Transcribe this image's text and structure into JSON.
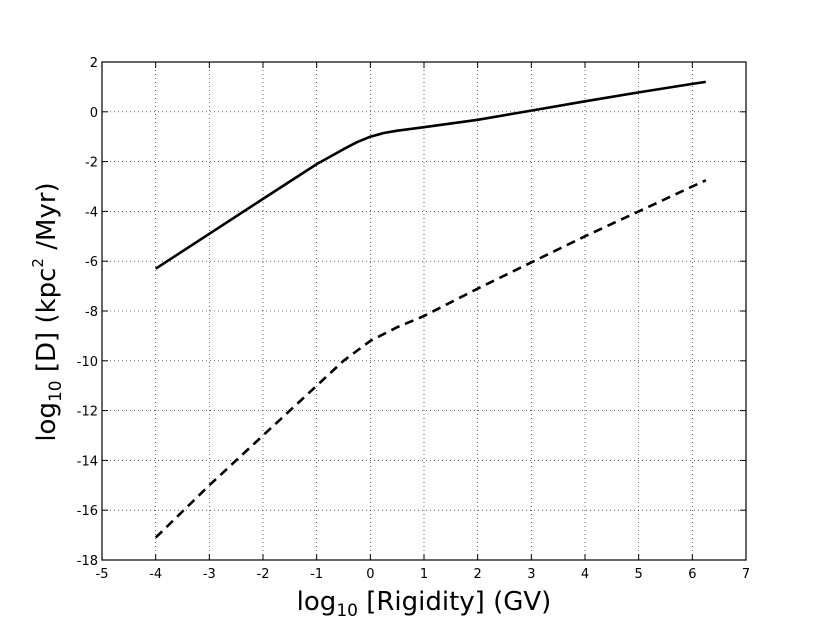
{
  "chart_data": {
    "type": "line",
    "xlabel": {
      "prefix": "log",
      "sub": "10",
      "rest": " [Rigidity] (GV)"
    },
    "ylabel": {
      "prefix": "log",
      "sub": "10",
      "mid": " [D] (kpc",
      "sup": "2",
      "rest": " /Myr)"
    },
    "xlim": [
      -5,
      7
    ],
    "ylim": [
      -18,
      2
    ],
    "xticks": [
      -5,
      -4,
      -3,
      -2,
      -1,
      0,
      1,
      2,
      3,
      4,
      5,
      6,
      7
    ],
    "yticks": [
      -18,
      -16,
      -14,
      -12,
      -10,
      -8,
      -6,
      -4,
      -2,
      0,
      2
    ],
    "grid": true,
    "series": [
      {
        "style": "solid",
        "color": "#000000",
        "points": [
          [
            -4,
            -6.3
          ],
          [
            -3,
            -4.9
          ],
          [
            -2,
            -3.5
          ],
          [
            -1,
            -2.1
          ],
          [
            -0.5,
            -1.5
          ],
          [
            -0.25,
            -1.22
          ],
          [
            0,
            -1.0
          ],
          [
            0.25,
            -0.85
          ],
          [
            0.5,
            -0.76
          ],
          [
            1,
            -0.62
          ],
          [
            2,
            -0.32
          ],
          [
            3,
            0.05
          ],
          [
            4,
            0.42
          ],
          [
            5,
            0.78
          ],
          [
            6,
            1.12
          ],
          [
            6.25,
            1.2
          ]
        ]
      },
      {
        "style": "dashed",
        "color": "#000000",
        "points": [
          [
            -4,
            -17.1
          ],
          [
            -3,
            -15.0
          ],
          [
            -2,
            -13.0
          ],
          [
            -1,
            -11.0
          ],
          [
            -0.5,
            -10.0
          ],
          [
            0,
            -9.2
          ],
          [
            0.5,
            -8.65
          ],
          [
            1,
            -8.2
          ],
          [
            2,
            -7.1
          ],
          [
            3,
            -6.05
          ],
          [
            4,
            -5.0
          ],
          [
            5,
            -4.0
          ],
          [
            6,
            -3.0
          ],
          [
            6.25,
            -2.75
          ]
        ]
      }
    ]
  }
}
